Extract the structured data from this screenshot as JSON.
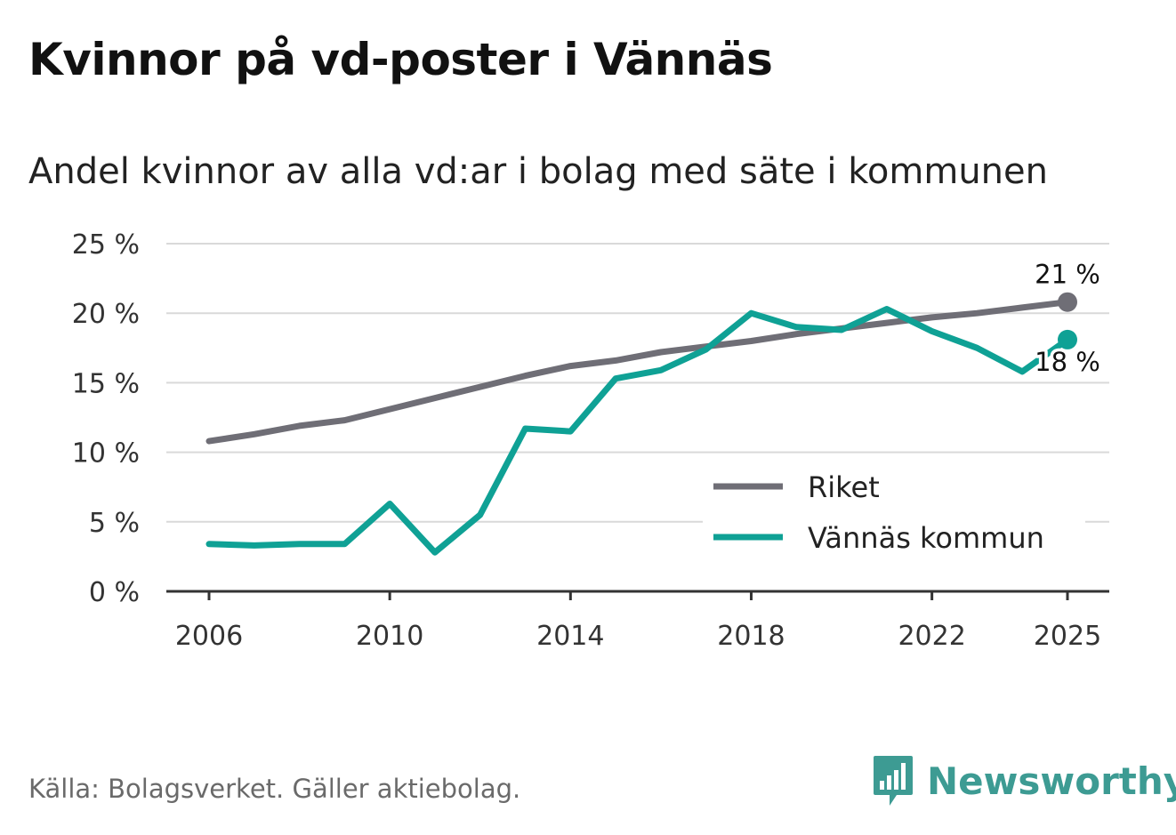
{
  "title": "Kvinnor på vd-poster i Vännäs",
  "subtitle": "Andel kvinnor av alla vd:ar i bolag med säte i kommunen",
  "source": "Källa: Bolagsverket. Gäller aktiebolag.",
  "brand": {
    "name": "Newsworthy",
    "icon": "newsworthy-logo-icon",
    "color": "#3d9b93"
  },
  "chart_data": {
    "type": "line",
    "title": "Kvinnor på vd-poster i Vännäs",
    "subtitle": "Andel kvinnor av alla vd:ar i bolag med säte i kommunen",
    "xlabel": "",
    "ylabel": "",
    "x": [
      2006,
      2007,
      2008,
      2009,
      2010,
      2011,
      2012,
      2013,
      2014,
      2015,
      2016,
      2017,
      2018,
      2019,
      2020,
      2021,
      2022,
      2023,
      2024,
      2025
    ],
    "xlim": [
      2006,
      2025
    ],
    "ylim": [
      0,
      25
    ],
    "x_ticks": [
      2006,
      2010,
      2014,
      2018,
      2022,
      2025
    ],
    "x_tick_labels": [
      "2006",
      "2010",
      "2014",
      "2018",
      "2022",
      "2025"
    ],
    "y_ticks": [
      0,
      5,
      10,
      15,
      20,
      25
    ],
    "y_tick_labels": [
      "0 %",
      "5 %",
      "10 %",
      "15 %",
      "20 %",
      "25 %"
    ],
    "grid": true,
    "legend_position": "bottom-right",
    "series": [
      {
        "name": "Riket",
        "color": "#6f6e76",
        "values": [
          10.8,
          11.3,
          11.9,
          12.3,
          13.1,
          13.9,
          14.7,
          15.5,
          16.2,
          16.6,
          17.2,
          17.6,
          18.0,
          18.5,
          18.9,
          19.3,
          19.7,
          20.0,
          20.4,
          20.8
        ],
        "end_label": "21 %"
      },
      {
        "name": "Vännäs kommun",
        "color": "#0fa195",
        "values": [
          3.4,
          3.3,
          3.4,
          3.4,
          6.3,
          2.8,
          5.5,
          11.7,
          11.5,
          15.3,
          15.9,
          17.4,
          20.0,
          19.0,
          18.8,
          20.3,
          18.7,
          17.5,
          15.8,
          18.1
        ],
        "end_label": "18 %"
      }
    ]
  }
}
